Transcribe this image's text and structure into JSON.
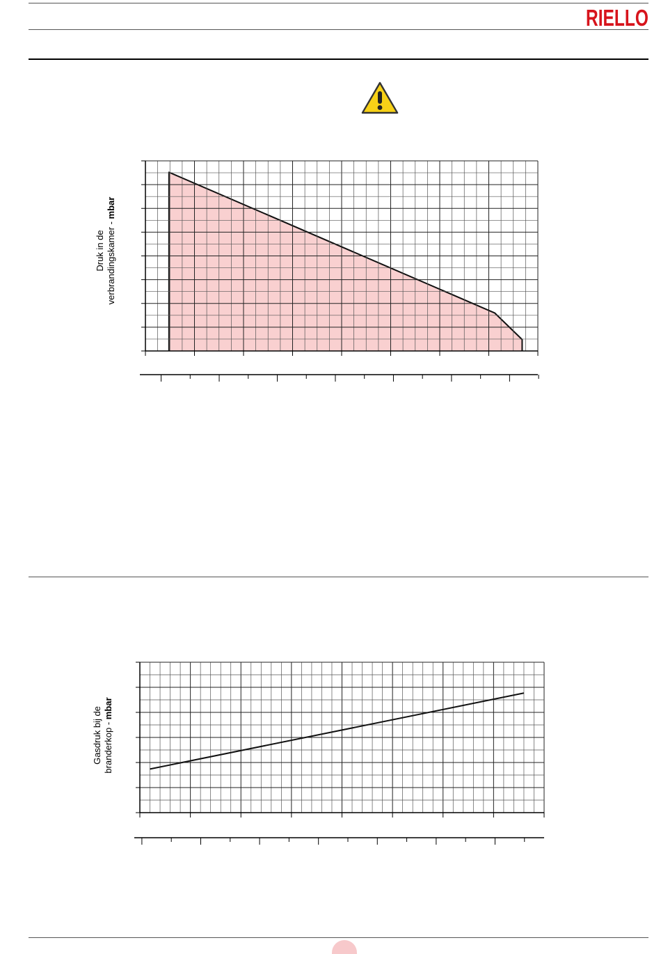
{
  "header": {
    "brand": "RIELLO",
    "brand_color": "#d7141c"
  },
  "warning_icon": "warning-triangle-icon",
  "chart_data": [
    {
      "type": "area",
      "ylabel": "Druk in de",
      "ylabel_line2": "verbrandingskamer - ",
      "ylabel_unit": "mbar",
      "fill_color": "#f8c8c8",
      "grid": true,
      "xlim": [
        0,
        100
      ],
      "ylim": [
        0,
        100
      ],
      "x": [
        6,
        6,
        89,
        96,
        96
      ],
      "y": [
        0,
        94,
        20,
        6,
        0
      ]
    },
    {
      "type": "line",
      "ylabel": "Gasdruk bij de",
      "ylabel_line2": "branderkop - ",
      "ylabel_unit": "mbar",
      "grid": true,
      "xlim": [
        0,
        100
      ],
      "ylim": [
        0,
        100
      ],
      "x": [
        2.5,
        95
      ],
      "y": [
        29,
        79.5
      ]
    }
  ]
}
